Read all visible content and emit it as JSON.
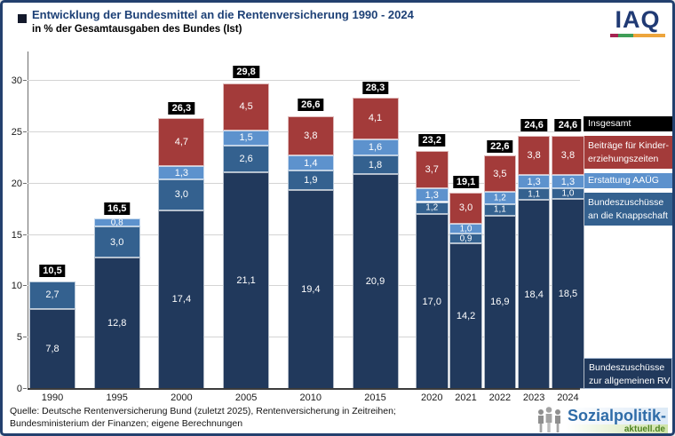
{
  "header": {
    "title": "Entwicklung der Bundesmittel an die Rentenversicherung 1990 - 2024",
    "subtitle": "in % der Gesamtausgaben des Bundes (Ist)"
  },
  "iaq_logo": {
    "text": "IAQ",
    "underline_colors": [
      "#a52352",
      "#3f9e57",
      "#eda53c"
    ]
  },
  "chart_data": {
    "type": "bar",
    "stacked": true,
    "title": "Entwicklung der Bundesmittel an die Rentenversicherung 1990 - 2024",
    "ylabel": "in % der Gesamtausgaben des Bundes (Ist)",
    "categories": [
      "1990",
      "1995",
      "2000",
      "2005",
      "2010",
      "2015",
      "2020",
      "2021",
      "2022",
      "2023",
      "2024"
    ],
    "series": [
      {
        "name": "Bundeszuschüsse zur allgemeinen RV",
        "color": "#21395c",
        "values": [
          7.8,
          12.8,
          17.4,
          21.1,
          19.4,
          20.9,
          17.0,
          14.2,
          16.9,
          18.4,
          18.5
        ]
      },
      {
        "name": "Bundeszuschüsse an die Knappschaft",
        "color": "#34618f",
        "values": [
          2.7,
          3.0,
          3.0,
          2.6,
          1.9,
          1.8,
          1.2,
          0.9,
          1.1,
          1.1,
          1.0
        ]
      },
      {
        "name": "Erstattung AAÜG",
        "color": "#5d92cd",
        "values": [
          null,
          0.8,
          1.3,
          1.5,
          1.4,
          1.6,
          1.3,
          1.0,
          1.2,
          1.3,
          1.3
        ]
      },
      {
        "name": "Beiträge für Kindererziehungszeiten",
        "color": "#a33b3a",
        "values": [
          null,
          null,
          4.7,
          4.5,
          3.8,
          4.1,
          3.7,
          3.0,
          3.5,
          3.8,
          3.8
        ]
      }
    ],
    "totals": [
      10.5,
      16.5,
      26.3,
      29.8,
      26.6,
      28.3,
      23.2,
      19.1,
      22.6,
      24.6,
      24.6
    ],
    "totals_style": {
      "bg": "#000000",
      "fg": "#ffffff"
    },
    "yticks": [
      0,
      5,
      10,
      15,
      20,
      25,
      30
    ],
    "ylim": [
      0,
      32.8
    ],
    "grid": true,
    "legend_position": "right",
    "decimal_separator": ","
  },
  "legend": {
    "items": [
      {
        "label": "Insgesamt",
        "color": "#000000"
      },
      {
        "label": "Beiträge für Kinder-\nerziehungszeiten",
        "color": "#a33b3a"
      },
      {
        "label": "Erstattung AAÜG",
        "color": "#5d92cd"
      },
      {
        "label": "Bundeszuschüsse\nan die Knappschaft",
        "color": "#34618f"
      },
      {
        "label": "Bundeszuschüsse\nzur allgemeinen RV",
        "color": "#21395c"
      }
    ]
  },
  "footer": {
    "source_line1": "Quelle: Deutsche Rentenversicherung Bund (zuletzt 2025), Rentenversicherung in Zeitreihen;",
    "source_line2": "Bundesministerium der Finanzen; eigene Berechnungen",
    "logo": {
      "main": "Sozialpolitik-",
      "sub": "aktuell.de"
    }
  }
}
